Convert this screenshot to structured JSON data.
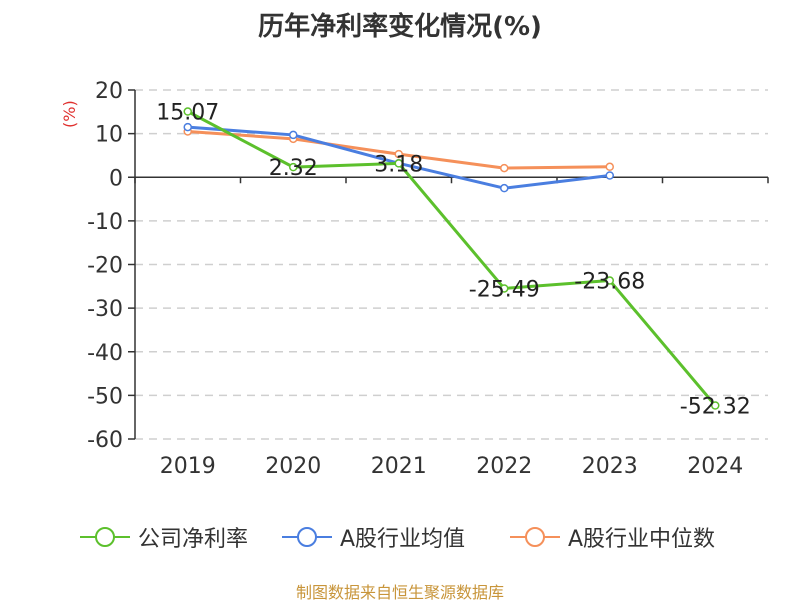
{
  "chart_data": {
    "type": "line",
    "title": "历年净利率变化情况(%)",
    "unit_label": "(%)",
    "categories": [
      "2019",
      "2020",
      "2021",
      "2022",
      "2023",
      "2024"
    ],
    "ylim": [
      -60,
      20
    ],
    "yticks": [
      20,
      10,
      0,
      -10,
      -20,
      -30,
      -40,
      -50,
      -60
    ],
    "grid": true,
    "legend_position": "bottom",
    "series": [
      {
        "name": "公司净利率",
        "color": "#5cc02c",
        "values": [
          15.07,
          2.32,
          3.18,
          -25.49,
          -23.68,
          -52.32
        ],
        "labels": [
          "15.07",
          "2.32",
          "3.18",
          "-25.49",
          "-23.68",
          "-52.32"
        ]
      },
      {
        "name": "A股行业均值",
        "color": "#4a7ee0",
        "values": [
          11.5,
          9.7,
          3.2,
          -2.5,
          0.4,
          null
        ],
        "labels": null
      },
      {
        "name": "A股行业中位数",
        "color": "#f5905a",
        "values": [
          10.5,
          8.8,
          5.3,
          2.1,
          2.4,
          null
        ],
        "labels": null
      }
    ],
    "source": "制图数据来自恒生聚源数据库"
  }
}
